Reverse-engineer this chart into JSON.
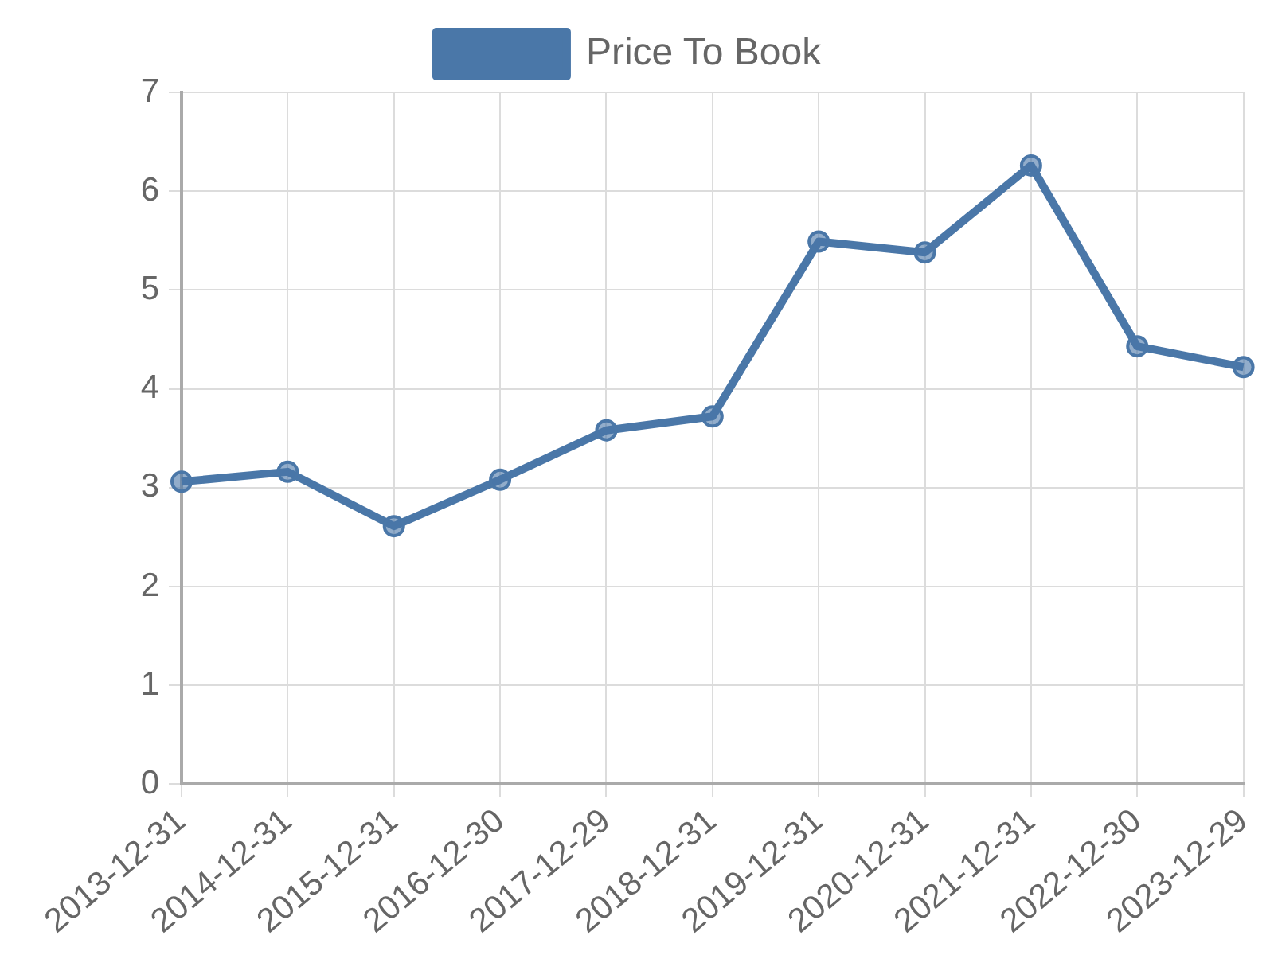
{
  "chart_data": {
    "type": "line",
    "categories": [
      "2013-12-31",
      "2014-12-31",
      "2015-12-31",
      "2016-12-30",
      "2017-12-29",
      "2018-12-31",
      "2019-12-31",
      "2020-12-31",
      "2021-12-31",
      "2022-12-30",
      "2023-12-29"
    ],
    "series": [
      {
        "name": "Price To Book",
        "color": "#4a77a8",
        "values": [
          3.06,
          3.16,
          2.61,
          3.08,
          3.58,
          3.72,
          5.49,
          5.38,
          6.26,
          4.43,
          4.22
        ]
      }
    ],
    "ylim": [
      0,
      7
    ],
    "yticks": [
      0,
      1,
      2,
      3,
      4,
      5,
      6,
      7
    ],
    "grid": true,
    "legend": "top",
    "marker": "circle",
    "line_style": "solid"
  }
}
